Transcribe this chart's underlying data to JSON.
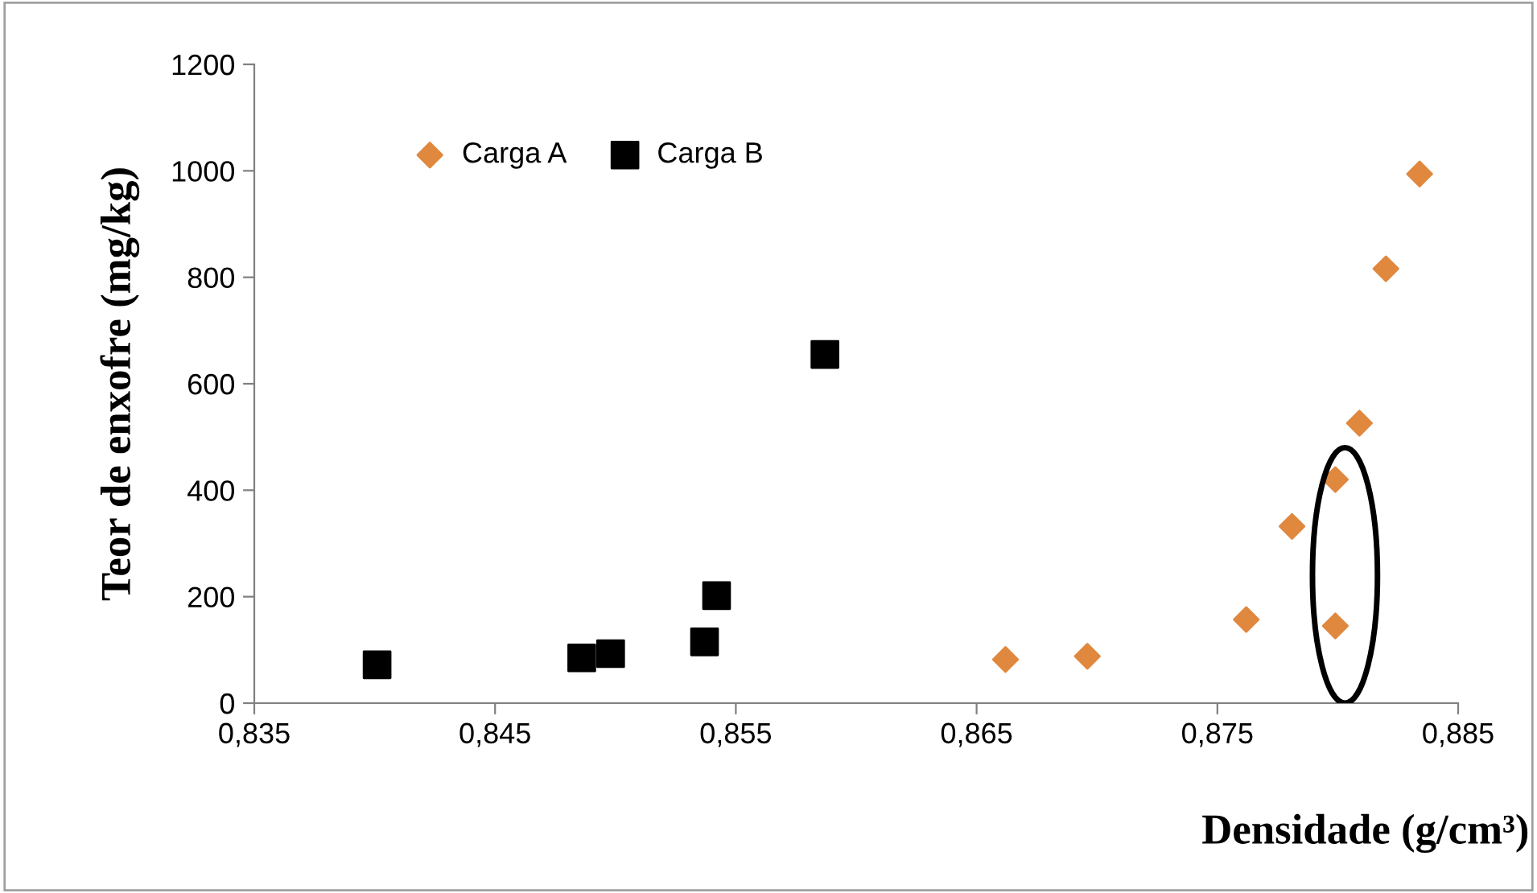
{
  "chart_data": {
    "type": "scatter",
    "xlabel": "Densidade (g/cm³)",
    "ylabel": "Teor de enxofre (mg/kg)",
    "series": [
      {
        "name": "Carga A",
        "color": "#e0883e",
        "marker": "diamond",
        "x": [
          0.8662,
          0.8696,
          0.8762,
          0.8781,
          0.8799,
          0.8799,
          0.8809,
          0.882,
          0.8834
        ],
        "values": [
          82,
          88,
          157,
          332,
          420,
          145,
          526,
          816,
          994
        ]
      },
      {
        "name": "Carga B",
        "color": "#000000",
        "marker": "square",
        "x": [
          0.8401,
          0.8486,
          0.8498,
          0.8537,
          0.8542,
          0.8587
        ],
        "values": [
          72,
          85,
          93,
          115,
          202,
          655
        ]
      }
    ],
    "xlim": [
      0.835,
      0.885
    ],
    "xticks": [
      {
        "value": 0.835,
        "label": "0,835"
      },
      {
        "value": 0.845,
        "label": "0,845"
      },
      {
        "value": 0.855,
        "label": "0,855"
      },
      {
        "value": 0.865,
        "label": "0,865"
      },
      {
        "value": 0.875,
        "label": "0,875"
      },
      {
        "value": 0.885,
        "label": "0,885"
      }
    ],
    "ylim": [
      0,
      1200
    ],
    "yticks": [
      0,
      200,
      400,
      600,
      800,
      1000,
      1200
    ],
    "grid": false,
    "legend": "top left"
  }
}
